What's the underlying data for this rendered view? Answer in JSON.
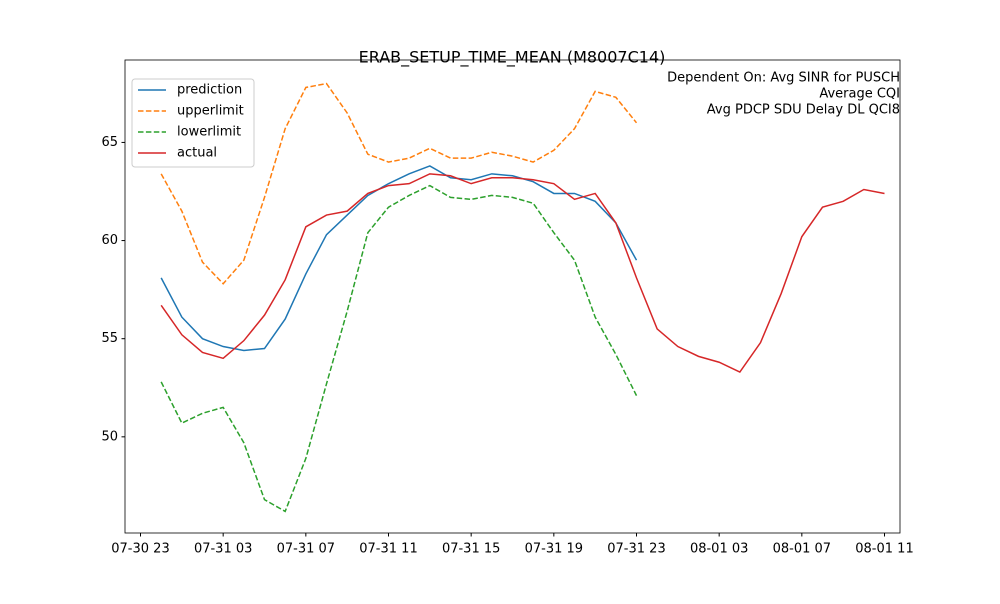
{
  "chart_data": {
    "type": "line",
    "title": "ERAB_SETUP_TIME_MEAN (M8007C14)",
    "annotation": [
      "Dependent On: Avg SINR for PUSCH",
      "Average CQI",
      "Avg PDCP SDU Delay DL QCI8"
    ],
    "x": [
      "07-31 00",
      "07-31 01",
      "07-31 02",
      "07-31 03",
      "07-31 04",
      "07-31 05",
      "07-31 06",
      "07-31 07",
      "07-31 08",
      "07-31 09",
      "07-31 10",
      "07-31 11",
      "07-31 12",
      "07-31 13",
      "07-31 14",
      "07-31 15",
      "07-31 16",
      "07-31 17",
      "07-31 18",
      "07-31 19",
      "07-31 20",
      "07-31 21",
      "07-31 22",
      "07-31 23",
      "08-01 00",
      "08-01 01",
      "08-01 02",
      "08-01 03",
      "08-01 04",
      "08-01 05",
      "08-01 06",
      "08-01 07",
      "08-01 08",
      "08-01 09",
      "08-01 10",
      "08-01 11"
    ],
    "series": [
      {
        "name": "prediction",
        "color": "#1f77b4",
        "dashed": false,
        "values": [
          58.1,
          56.1,
          55.0,
          54.6,
          54.4,
          54.5,
          56.0,
          58.3,
          60.3,
          61.3,
          62.3,
          62.9,
          63.4,
          63.8,
          63.2,
          63.1,
          63.4,
          63.3,
          63.0,
          62.4,
          62.4,
          62.0,
          60.9,
          59.0,
          null,
          null,
          null,
          null,
          null,
          null,
          null,
          null,
          null,
          null,
          null,
          null
        ]
      },
      {
        "name": "upperlimit",
        "color": "#ff7f0e",
        "dashed": true,
        "values": [
          63.4,
          61.5,
          58.9,
          57.8,
          59.0,
          62.2,
          65.7,
          67.8,
          68.0,
          66.5,
          64.4,
          64.0,
          64.2,
          64.7,
          64.2,
          64.2,
          64.5,
          64.3,
          64.0,
          64.6,
          65.7,
          67.6,
          67.3,
          66.0,
          null,
          null,
          null,
          null,
          null,
          null,
          null,
          null,
          null,
          null,
          null,
          null
        ]
      },
      {
        "name": "lowerlimit",
        "color": "#2ca02c",
        "dashed": true,
        "values": [
          52.8,
          50.7,
          51.2,
          51.5,
          49.7,
          46.8,
          46.2,
          48.9,
          52.7,
          56.4,
          60.4,
          61.7,
          62.3,
          62.8,
          62.2,
          62.1,
          62.3,
          62.2,
          61.9,
          60.4,
          59.0,
          56.1,
          54.2,
          52.1,
          null,
          null,
          null,
          null,
          null,
          null,
          null,
          null,
          null,
          null,
          null,
          null
        ]
      },
      {
        "name": "actual",
        "color": "#d62728",
        "dashed": false,
        "values": [
          56.7,
          55.2,
          54.3,
          54.0,
          54.9,
          56.2,
          58.0,
          60.7,
          61.3,
          61.5,
          62.4,
          62.8,
          62.9,
          63.4,
          63.3,
          62.9,
          63.2,
          63.2,
          63.1,
          62.9,
          62.1,
          62.4,
          60.9,
          58.1,
          55.5,
          54.6,
          54.1,
          53.8,
          53.3,
          54.8,
          57.3,
          60.2,
          61.7,
          62.0,
          62.6,
          62.4
        ]
      }
    ],
    "xlim": [
      "07-30 22:15",
      "08-01 11:45"
    ],
    "xticks": [
      "07-30 23",
      "07-31 03",
      "07-31 07",
      "07-31 11",
      "07-31 15",
      "07-31 19",
      "07-31 23",
      "08-01 03",
      "08-01 07",
      "08-01 11"
    ],
    "ylim": [
      45.1,
      69.2
    ],
    "yticks": [
      50,
      55,
      60,
      65
    ],
    "legend": "upper left",
    "grid": false
  }
}
